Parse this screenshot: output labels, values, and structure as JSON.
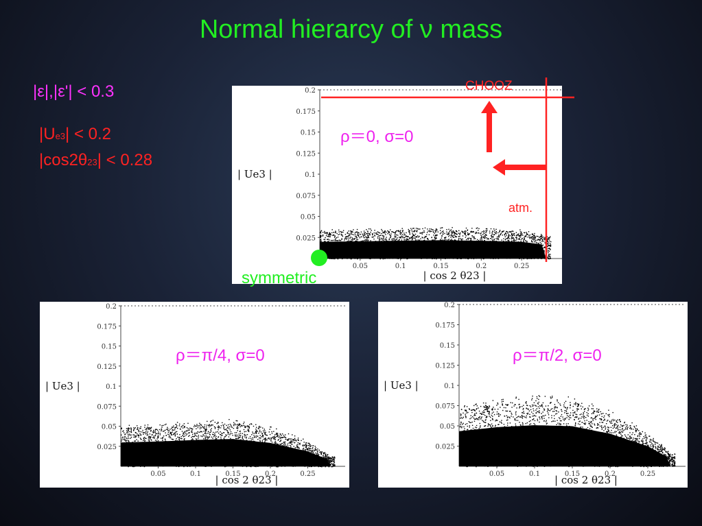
{
  "slide": {
    "title": "Normal hierarcy of ν mass",
    "constraint_eps": "|ε|,|ε'| < 0.3",
    "constraint_ue3_prefix": "|U",
    "constraint_ue3_sub": "e3",
    "constraint_ue3_suffix": "| < 0.2",
    "constraint_cos_prefix": "|cos2θ",
    "constraint_cos_sub": "23",
    "constraint_cos_suffix": "| < 0.28",
    "symmetric_label": "symmetric",
    "chooz_label": "CHOOZ",
    "atm_label": "atm.",
    "colors": {
      "title": "#22ee22",
      "eps": "#ff33ff",
      "constraint": "#ff2222",
      "param": "#ee22ee",
      "marker": "#22ee22",
      "arrow": "#ff2222"
    }
  },
  "chart_data": [
    {
      "type": "scatter",
      "param_label": "ρ＝0, σ=0",
      "xlabel": "| cos  2 θ23 |",
      "ylabel": "| Ue3 |",
      "xlim": [
        0,
        0.3
      ],
      "ylim": [
        0,
        0.2
      ],
      "x_ticks": [
        "0.05",
        "0.1",
        "0.15",
        "0.2",
        "0.25"
      ],
      "y_ticks": [
        "0.025",
        "0.05",
        "0.075",
        "0.1",
        "0.125",
        "0.15",
        "0.175",
        "0.2"
      ],
      "envelope": [
        [
          0,
          0.032
        ],
        [
          0.05,
          0.033
        ],
        [
          0.1,
          0.034
        ],
        [
          0.15,
          0.035
        ],
        [
          0.2,
          0.034
        ],
        [
          0.25,
          0.032
        ],
        [
          0.28,
          0.026
        ]
      ]
    },
    {
      "type": "scatter",
      "param_label": "ρ＝π/4, σ=0",
      "xlabel": "| cos  2 θ23 |",
      "ylabel": "| Ue3 |",
      "xlim": [
        0,
        0.3
      ],
      "ylim": [
        0,
        0.2
      ],
      "x_ticks": [
        "0.05",
        "0.1",
        "0.15",
        "0.2",
        "0.25"
      ],
      "y_ticks": [
        "0.025",
        "0.05",
        "0.075",
        "0.1",
        "0.125",
        "0.15",
        "0.175",
        "0.2"
      ],
      "envelope": [
        [
          0,
          0.048
        ],
        [
          0.05,
          0.05
        ],
        [
          0.1,
          0.053
        ],
        [
          0.15,
          0.055
        ],
        [
          0.2,
          0.047
        ],
        [
          0.25,
          0.03
        ],
        [
          0.28,
          0.012
        ]
      ]
    },
    {
      "type": "scatter",
      "param_label": "ρ＝π/2, σ=0",
      "xlabel": "| cos  2 θ23 |",
      "ylabel": "| Ue3 |",
      "xlim": [
        0,
        0.3
      ],
      "ylim": [
        0,
        0.2
      ],
      "x_ticks": [
        "0.05",
        "0.1",
        "0.15",
        "0.2",
        "0.25"
      ],
      "y_ticks": [
        "0.025",
        "0.05",
        "0.075",
        "0.1",
        "0.125",
        "0.15",
        "0.175",
        "0.2"
      ],
      "envelope": [
        [
          0,
          0.07
        ],
        [
          0.05,
          0.078
        ],
        [
          0.1,
          0.082
        ],
        [
          0.15,
          0.08
        ],
        [
          0.2,
          0.065
        ],
        [
          0.25,
          0.04
        ],
        [
          0.28,
          0.015
        ]
      ]
    }
  ]
}
